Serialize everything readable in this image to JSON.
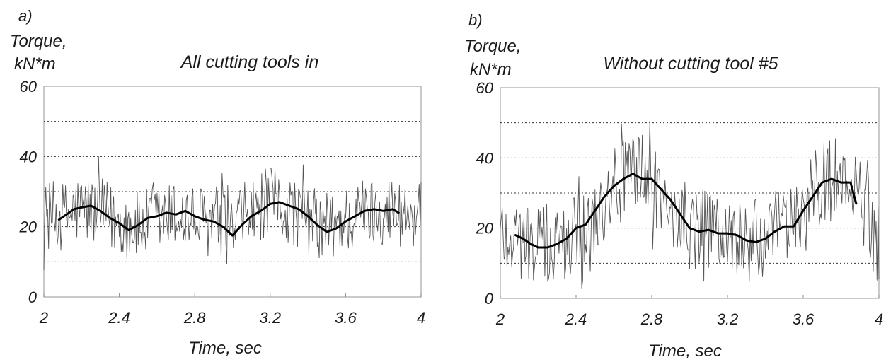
{
  "chart_data": [
    {
      "panel_label": "a)",
      "type": "line",
      "title": "All cutting tools in",
      "ylabel": [
        "Torque,",
        "kN*m"
      ],
      "xlabel": "Time, sec",
      "xlim": [
        2,
        4
      ],
      "ylim": [
        0,
        60
      ],
      "x_ticks": [
        2,
        2.4,
        2.8,
        3.2,
        3.6,
        4
      ],
      "x_tick_labels": [
        "2",
        "2.4",
        "2.8",
        "3.2",
        "3.6",
        "4"
      ],
      "y_tick_labels": [
        {
          "value": 0,
          "label": "0"
        },
        {
          "value": 20,
          "label": "20"
        },
        {
          "value": 40,
          "label": "40"
        },
        {
          "value": 60,
          "label": "60"
        }
      ],
      "grid": {
        "y": [
          10,
          20,
          30,
          40,
          50
        ],
        "style": "dotted"
      },
      "raw_series": {
        "color": "#555555",
        "x": [
          2.0,
          2.1,
          2.2,
          2.3,
          2.4,
          2.5,
          2.6,
          2.7,
          2.8,
          2.9,
          3.0,
          3.1,
          3.2,
          3.3,
          3.4,
          3.5,
          3.6,
          3.7,
          3.8,
          3.9,
          4.0
        ],
        "y": [
          23,
          23,
          25,
          24,
          21,
          20,
          22,
          23,
          22,
          21,
          19,
          24,
          27,
          25,
          22,
          19,
          22,
          24,
          25,
          24,
          23
        ],
        "noise_amplitude": 10
      },
      "smooth_series": {
        "color": "#000000",
        "x": [
          2.08,
          2.12,
          2.16,
          2.2,
          2.25,
          2.3,
          2.35,
          2.4,
          2.45,
          2.5,
          2.55,
          2.6,
          2.65,
          2.7,
          2.75,
          2.8,
          2.85,
          2.9,
          2.95,
          3.0,
          3.05,
          3.1,
          3.15,
          3.2,
          3.25,
          3.3,
          3.35,
          3.4,
          3.45,
          3.5,
          3.55,
          3.6,
          3.65,
          3.7,
          3.75,
          3.8,
          3.85,
          3.88
        ],
        "y": [
          22,
          23.5,
          25,
          25.5,
          26,
          24.5,
          22.5,
          21,
          19,
          20.5,
          22.5,
          23,
          24,
          23.5,
          24.5,
          23,
          22,
          21.5,
          20,
          17.5,
          20.5,
          23,
          24.5,
          26.5,
          27,
          26,
          25,
          23,
          20.5,
          18.5,
          19.5,
          21.5,
          23,
          24.5,
          25,
          24.5,
          25,
          24
        ]
      }
    },
    {
      "panel_label": "b)",
      "type": "line",
      "title": "Without cutting tool #5",
      "ylabel": [
        "Torque,",
        "kN*m"
      ],
      "xlabel": "Time, sec",
      "xlim": [
        2,
        4
      ],
      "ylim": [
        0,
        60
      ],
      "x_ticks": [
        2,
        2.4,
        2.8,
        3.2,
        3.6,
        4
      ],
      "x_tick_labels": [
        "2",
        "2.4",
        "2.8",
        "3.2",
        "3.6",
        "4"
      ],
      "y_tick_labels": [
        {
          "value": 0,
          "label": "0"
        },
        {
          "value": 20,
          "label": "20"
        },
        {
          "value": 40,
          "label": "40"
        },
        {
          "value": 60,
          "label": "60"
        }
      ],
      "grid": {
        "y": [
          10,
          20,
          30,
          40,
          50
        ],
        "style": "dotted"
      },
      "raw_series": {
        "color": "#555555",
        "x": [
          2.0,
          2.1,
          2.2,
          2.3,
          2.4,
          2.5,
          2.6,
          2.7,
          2.8,
          2.9,
          3.0,
          3.1,
          3.2,
          3.3,
          3.4,
          3.5,
          3.6,
          3.7,
          3.8,
          3.9,
          4.0
        ],
        "y": [
          19,
          17,
          15,
          15,
          18,
          23,
          33,
          36,
          33,
          25,
          19,
          19,
          18,
          16,
          17,
          20,
          25,
          33,
          34,
          28,
          15
        ],
        "noise_amplitude": 12
      },
      "smooth_series": {
        "color": "#000000",
        "x": [
          2.08,
          2.12,
          2.16,
          2.2,
          2.25,
          2.3,
          2.35,
          2.4,
          2.45,
          2.5,
          2.55,
          2.6,
          2.65,
          2.7,
          2.75,
          2.8,
          2.85,
          2.9,
          2.95,
          3.0,
          3.05,
          3.1,
          3.15,
          3.2,
          3.25,
          3.3,
          3.35,
          3.4,
          3.45,
          3.5,
          3.55,
          3.6,
          3.65,
          3.7,
          3.75,
          3.8,
          3.85,
          3.88
        ],
        "y": [
          18,
          17,
          15.5,
          14.5,
          14.5,
          15.5,
          17,
          20,
          21,
          25,
          29,
          32,
          34,
          35.5,
          34,
          34,
          31,
          28,
          24,
          20,
          19,
          19.5,
          18.5,
          18.5,
          18,
          16.5,
          16,
          17,
          19,
          20.5,
          20.5,
          25,
          29,
          33,
          34,
          33,
          33,
          27
        ]
      }
    }
  ]
}
